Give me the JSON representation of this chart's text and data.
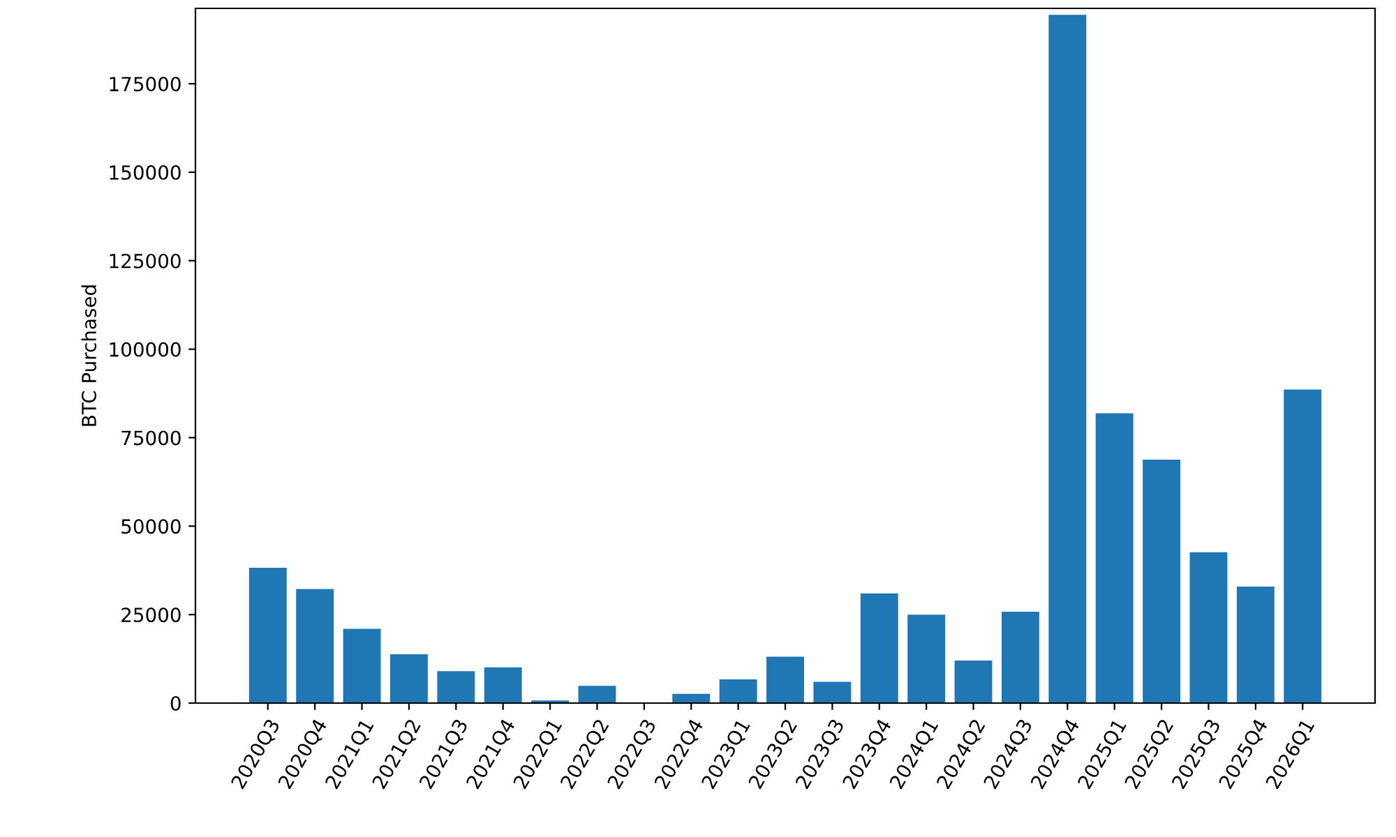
{
  "chart_data": {
    "type": "bar",
    "ylabel": "BTC Purchased",
    "categories": [
      "2020Q3",
      "2020Q4",
      "2021Q1",
      "2021Q2",
      "2021Q3",
      "2021Q4",
      "2022Q1",
      "2022Q2",
      "2022Q3",
      "2022Q4",
      "2023Q1",
      "2023Q2",
      "2023Q3",
      "2023Q4",
      "2024Q1",
      "2024Q2",
      "2024Q3",
      "2024Q4",
      "2025Q1",
      "2025Q2",
      "2025Q3",
      "2025Q4",
      "2026Q1"
    ],
    "values": [
      38250,
      32200,
      21000,
      13800,
      9000,
      10100,
      750,
      4900,
      0,
      2600,
      6700,
      13100,
      6000,
      31000,
      25000,
      12000,
      25800,
      194500,
      81900,
      68800,
      42600,
      32900,
      88600
    ],
    "color": "#1f77b4",
    "ylim": [
      0,
      196300
    ],
    "yticks": [
      0,
      25000,
      50000,
      75000,
      100000,
      125000,
      150000,
      175000
    ],
    "grid": false
  }
}
